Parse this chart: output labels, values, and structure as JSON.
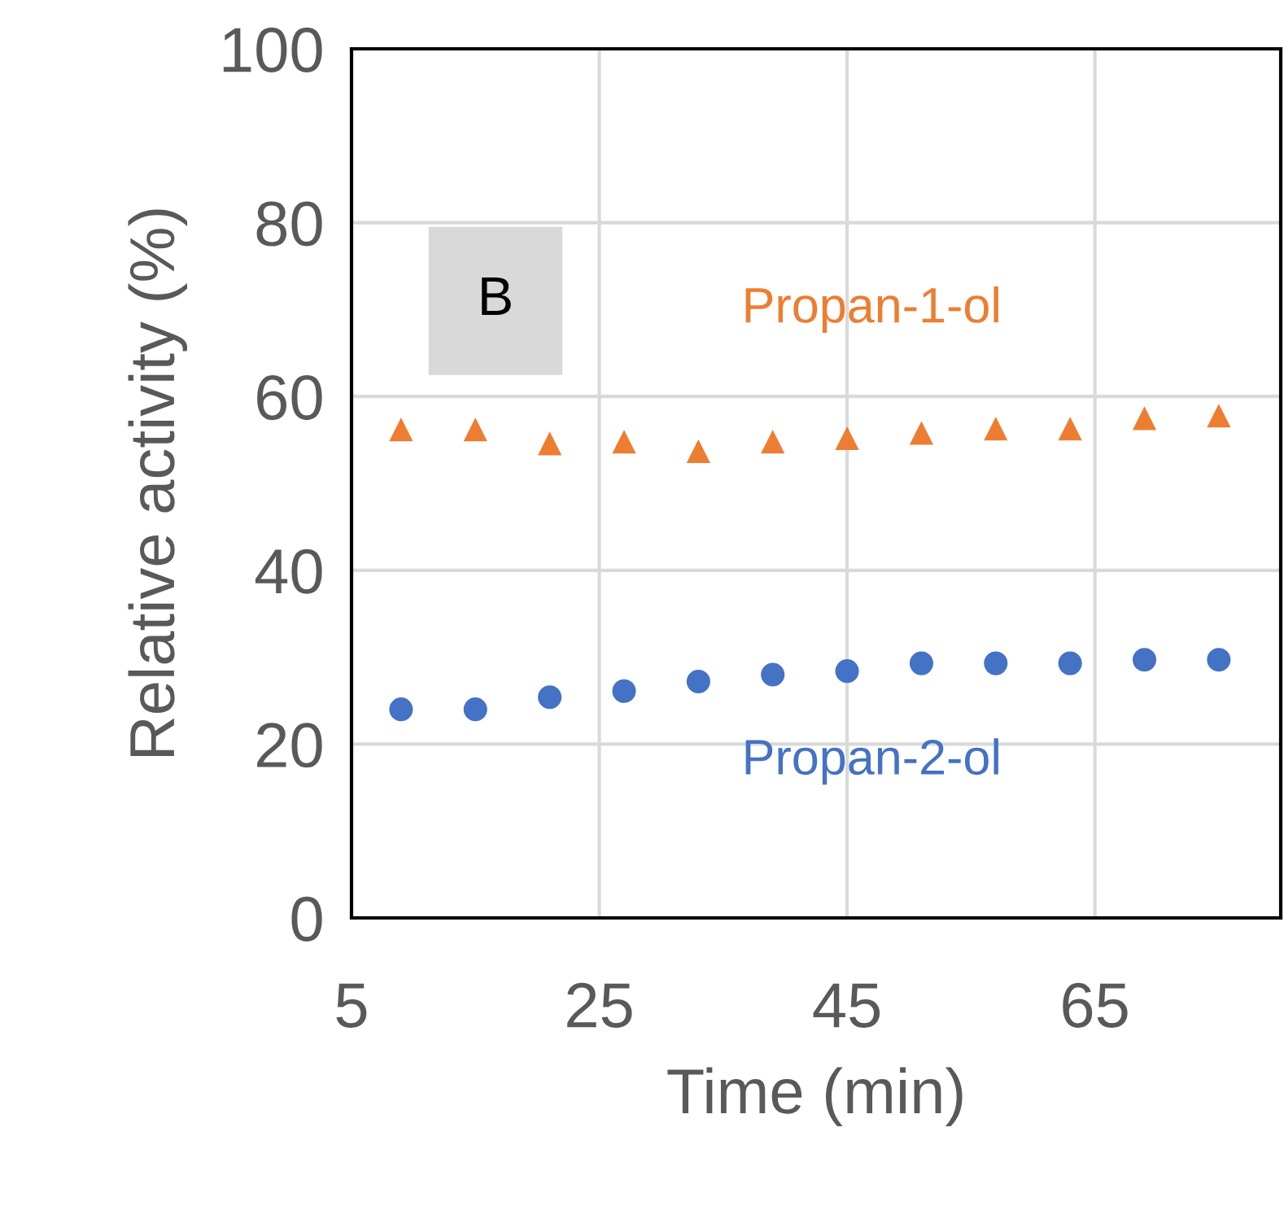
{
  "chart_data": {
    "type": "scatter",
    "xlabel": "Time (min)",
    "ylabel": "Relative activity (%)",
    "xlim": [
      5,
      80
    ],
    "xticks": [
      5,
      25,
      45,
      65
    ],
    "ylim": [
      0,
      100
    ],
    "yticks": [
      0,
      20,
      40,
      60,
      80,
      100
    ],
    "grid": true,
    "legend": false,
    "annotations": [
      "B"
    ],
    "series": [
      {
        "name": "Propan-1-ol",
        "color": "#ed7d31",
        "marker": "triangle",
        "x": [
          9,
          15,
          21,
          27,
          33,
          39,
          45,
          51,
          57,
          63,
          69,
          75
        ],
        "values": [
          56.2,
          56.2,
          54.6,
          54.8,
          53.7,
          54.8,
          55.2,
          55.8,
          56.3,
          56.3,
          57.5,
          57.8
        ]
      },
      {
        "name": "Propan-2-ol",
        "color": "#4472c4",
        "marker": "circle",
        "x": [
          9,
          15,
          21,
          27,
          33,
          39,
          45,
          51,
          57,
          63,
          69,
          75
        ],
        "values": [
          24.0,
          24.0,
          25.4,
          26.1,
          27.2,
          28.0,
          28.4,
          29.3,
          29.3,
          29.3,
          29.7,
          29.7
        ]
      }
    ]
  }
}
